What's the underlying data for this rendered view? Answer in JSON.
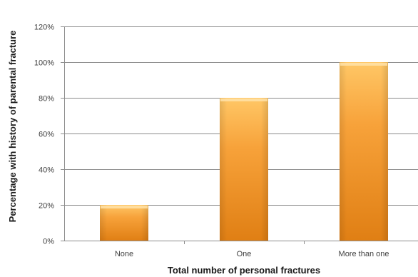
{
  "chart_data": {
    "type": "bar",
    "categories": [
      "None",
      "One",
      "More than one"
    ],
    "values": [
      20,
      80,
      100
    ],
    "yticks": [
      "0%",
      "20%",
      "40%",
      "60%",
      "80%",
      "100%",
      "120%"
    ],
    "ylim": [
      0,
      120
    ],
    "xlabel": "Total number of personal fractures",
    "ylabel": "Percentage with history of parental fracture",
    "grid": true,
    "legend": "none",
    "colors": {
      "bar_light": "#ffc766",
      "bar_mid": "#f7a23a",
      "bar_dark": "#e07f14",
      "grid": "#8c8c8c",
      "axis": "#8c8c8c"
    }
  }
}
